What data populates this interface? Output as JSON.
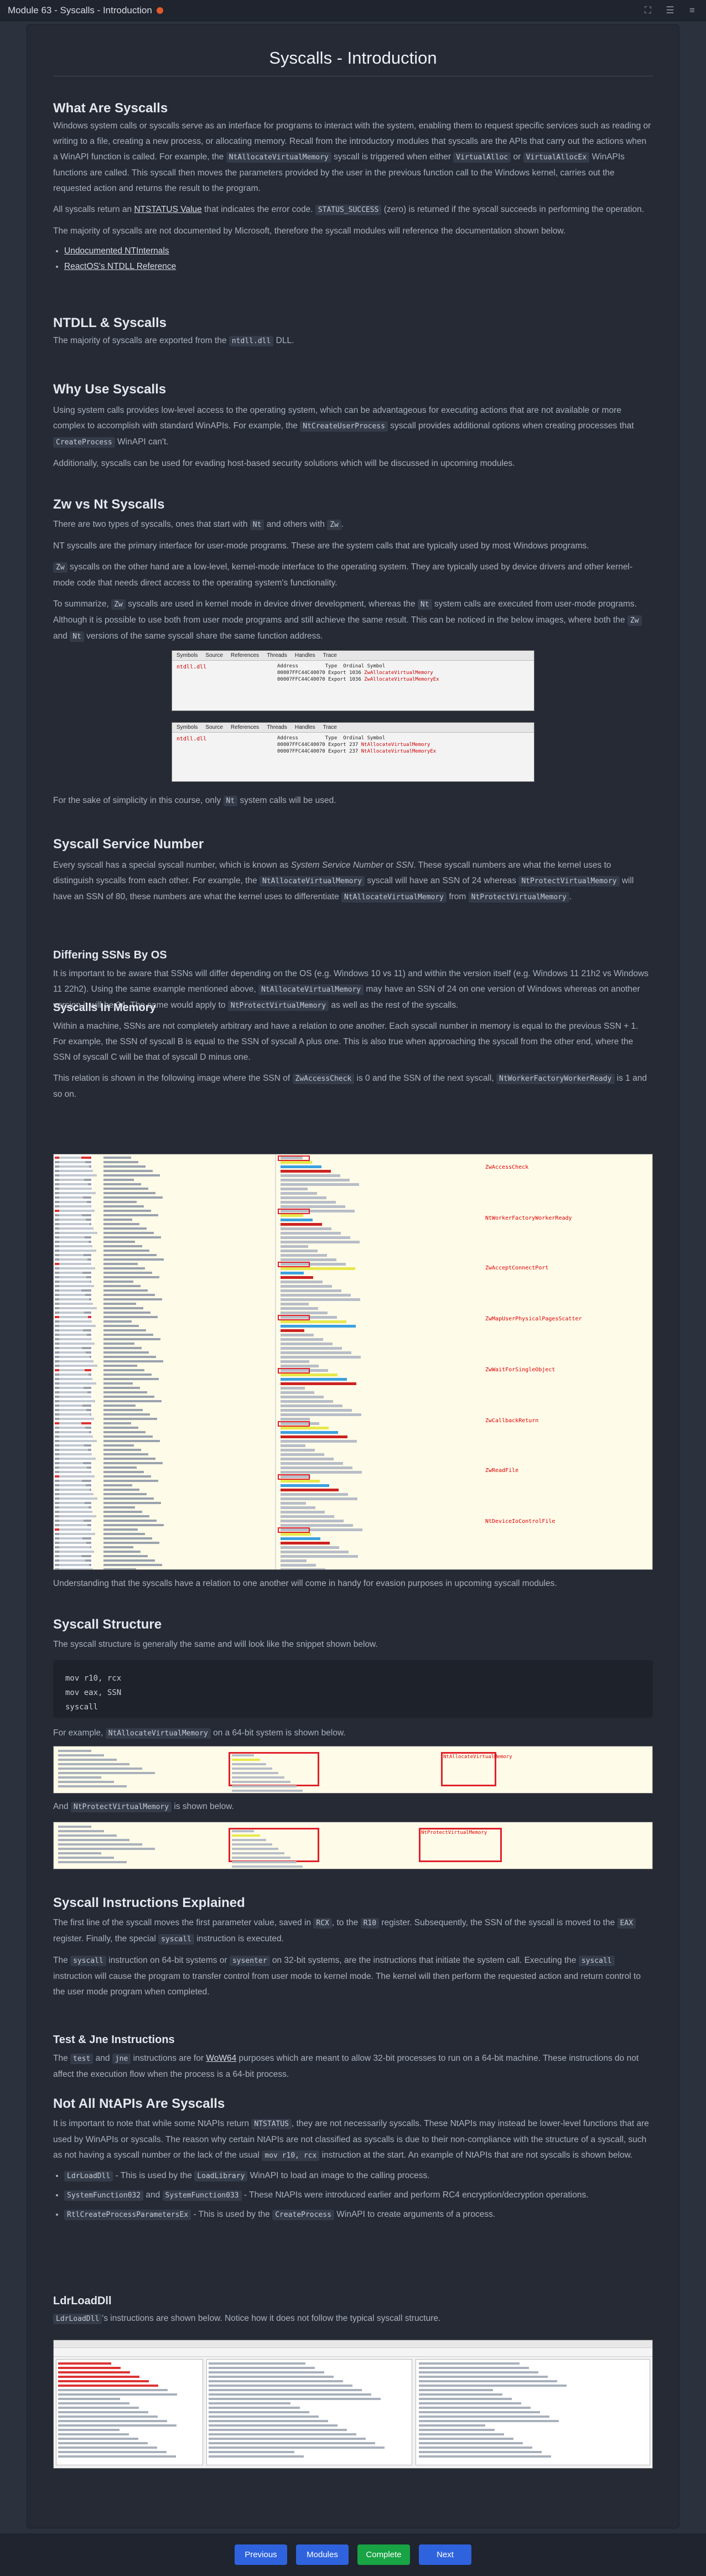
{
  "window": {
    "title": "Module 63 - Syscalls - Introduction"
  },
  "page_title": "Syscalls - Introduction",
  "sections": {
    "what": {
      "heading": "What Are Syscalls",
      "p1a": "Windows system calls or syscalls serve as an interface for programs to interact with the system, enabling them to request specific services such as reading or writing to a file, creating a new process, or allocating memory. Recall from the introductory modules that syscalls are the APIs that carry out the actions when a WinAPI function is called. For example, the ",
      "p1code1": "NtAllocateVirtualMemory",
      "p1b": " syscall is triggered when either ",
      "p1code2": "VirtualAlloc",
      "p1c": " or ",
      "p1code3": "VirtualAllocEx",
      "p1d": " WinAPIs functions are called. This syscall then moves the parameters provided by the user in the previous function call to the Windows kernel, carries out the requested action and returns the result to the program.",
      "p2a": "All syscalls return an ",
      "p2link": "NTSTATUS Value",
      "p2b": " that indicates the error code. ",
      "p2code": "STATUS_SUCCESS",
      "p2c": " (zero) is returned if the syscall succeeds in performing the operation.",
      "p3": "The majority of syscalls are not documented by Microsoft, therefore the syscall modules will reference the documentation shown below.",
      "links": [
        "Undocumented NTInternals",
        "ReactOS's NTDLL Reference"
      ]
    },
    "ntdll": {
      "heading": "NTDLL & Syscalls",
      "p1a": "The majority of syscalls are exported from the ",
      "p1code": "ntdll.dll",
      "p1b": " DLL."
    },
    "why": {
      "heading": "Why Use Syscalls",
      "p1a": "Using system calls provides low-level access to the operating system, which can be advantageous for executing actions that are not available or more complex to accomplish with standard WinAPIs. For example, the ",
      "p1code1": "NtCreateUserProcess",
      "p1b": " syscall provides additional options when creating processes that ",
      "p1code2": "CreateProcess",
      "p1c": " WinAPI can't.",
      "p2": "Additionally, syscalls can be used for evading host-based security solutions which will be discussed in upcoming modules."
    },
    "zw": {
      "heading": "Zw vs Nt Syscalls",
      "p1a": "There are two types of syscalls, ones that start with ",
      "p1code1": "Nt",
      "p1b": " and others with ",
      "p1code2": "Zw",
      "p1c": ".",
      "p2": "NT syscalls are the primary interface for user-mode programs. These are the system calls that are typically used by most Windows programs.",
      "p3code": "Zw",
      "p3": " syscalls on the other hand are a low-level, kernel-mode interface to the operating system. They are typically used by device drivers and other kernel-mode code that needs direct access to the operating system's functionality.",
      "p4a": "To summarize, ",
      "p4code1": "Zw",
      "p4b": " syscalls are used in kernel mode in device driver development, whereas the ",
      "p4code2": "Nt",
      "p4c": " system calls are executed from user-mode programs. Although it is possible to use both from user mode programs and still achieve the same result. This can be noticed in the below images, where both the ",
      "p4code3": "Zw",
      "p4d": " and ",
      "p4code4": "Nt",
      "p4e": " versions of the same syscall share the same function address.",
      "img1": {
        "tabs": [
          "Symbols",
          "Source",
          "References",
          "Threads",
          "Handles",
          "Trace"
        ],
        "left": "ntdll.dll",
        "cols": [
          "Address",
          "Type",
          "Ordinal",
          "Symbol"
        ],
        "rows": [
          [
            "00007FFC44C40070",
            "Export",
            "1036",
            "ZwAllocateVirtualMemory"
          ],
          [
            "00007FFC44C40070",
            "Export",
            "1036",
            "ZwAllocateVirtualMemoryEx"
          ]
        ]
      },
      "img2": {
        "tabs": [
          "Symbols",
          "Source",
          "References",
          "Threads",
          "Handles",
          "Trace"
        ],
        "left": "ntdll.dll",
        "cols": [
          "Address",
          "Type",
          "Ordinal",
          "Symbol"
        ],
        "rows": [
          [
            "00007FFC44C40070",
            "Export",
            "237",
            "NtAllocateVirtualMemory"
          ],
          [
            "00007FFC44C40070",
            "Export",
            "237",
            "NtAllocateVirtualMemoryEx"
          ]
        ]
      },
      "p5a": "For the sake of simplicity in this course, only ",
      "p5code": "Nt",
      "p5b": " system calls will be used."
    },
    "ssn": {
      "heading": "Syscall Service Number",
      "p1a": "Every syscall has a special syscall number, which is known as ",
      "p1em": "System Service Number",
      "p1b": " or ",
      "p1em2": "SSN",
      "p1c": ". These syscall numbers are what the kernel uses to distinguish syscalls from each other. For example, the ",
      "p1code1": "NtAllocateVirtualMemory",
      "p1d": " syscall will have an SSN of 24 whereas ",
      "p1code2": "NtProtectVirtualMemory",
      "p1e": " will have an SSN of 80, these numbers are what the kernel uses to differentiate ",
      "p1code3": "NtAllocateVirtualMemory",
      "p1f": " from ",
      "p1code4": "NtProtectVirtualMemory",
      "p1g": "."
    },
    "diff": {
      "heading": "Differing SSNs By OS",
      "p1a": "It is important to be aware that SSNs will differ depending on the OS (e.g. Windows 10 vs 11) and within the version itself (e.g. Windows 11 21h2 vs Windows 11 22h2). Using the same example mentioned above, ",
      "p1code1": "NtAllocateVirtualMemory",
      "p1b": " may have an SSN of 24 on one version of Windows whereas on another version it will be 34. The same would apply to ",
      "p1code2": "NtProtectVirtualMemory",
      "p1c": " as well as the rest of the syscalls."
    },
    "mem": {
      "heading": "Syscalls In Memory",
      "p1": "Within a machine, SSNs are not completely arbitrary and have a relation to one another. Each syscall number in memory is equal to the previous SSN + 1. For example, the SSN of syscall B is equal to the SSN of syscall A plus one. This is also true when approaching the syscall from the other end, where the SSN of syscall C will be that of syscall D minus one.",
      "p2a": "This relation is shown in the following image where the SSN of ",
      "p2code1": "ZwAccessCheck",
      "p2b": " is 0 and the SSN of the next syscall, ",
      "p2code2": "NtWorkerFactoryWorkerReady",
      "p2c": " is 1 and so on.",
      "names": [
        "ZwAccessCheck",
        "NtWorkerFactoryWorkerReady",
        "ZwAcceptConnectPort",
        "ZwMapUserPhysicalPagesScatter",
        "ZwWaitForSingleObject",
        "ZwCallbackReturn",
        "ZwReadFile",
        "NtDeviceIoControlFile"
      ],
      "p3": "Understanding that the syscalls have a relation to one another will come in handy for evasion purposes in upcoming syscall modules."
    },
    "struct": {
      "heading": "Syscall Structure",
      "p1": "The syscall structure is generally the same and will look like the snippet shown below.",
      "code": [
        "mov r10, rcx",
        "mov eax, SSN",
        "syscall"
      ],
      "p2a": "For example, ",
      "p2code": "NtAllocateVirtualMemory",
      "p2b": " on a 64-bit system is shown below.",
      "img1_label": "NtAllocateVirtualMemory",
      "p3a": "And ",
      "p3code": "NtProtectVirtualMemory",
      "p3b": " is shown below.",
      "img2_label": "NtProtectVirtualMemory"
    },
    "explained": {
      "heading": "Syscall Instructions Explained",
      "p1a": "The first line of the syscall moves the first parameter value, saved in ",
      "p1code1": "RCX",
      "p1b": ", to the ",
      "p1code2": "R10",
      "p1c": " register. Subsequently, the SSN of the syscall is moved to the ",
      "p1code3": "EAX",
      "p1d": " register. Finally, the special ",
      "p1code4": "syscall",
      "p1e": " instruction is executed.",
      "p2a": "The ",
      "p2code1": "syscall",
      "p2b": " instruction on 64-bit systems or ",
      "p2code2": "sysenter",
      "p2c": " on 32-bit systems, are the instructions that initiate the system call. Executing the ",
      "p2code3": "syscall",
      "p2d": " instruction will cause the program to transfer control from user mode to kernel mode. The kernel will then perform the requested action and return control to the user mode program when completed."
    },
    "test": {
      "heading": "Test & Jne Instructions",
      "p1a": "The ",
      "p1code1": "test",
      "p1b": " and ",
      "p1code2": "jne",
      "p1c": " instructions are for ",
      "p1link": "WoW64",
      "p1d": " purposes which are meant to allow 32-bit processes to run on a 64-bit machine. These instructions do not affect the execution flow when the process is a 64-bit process."
    },
    "notall": {
      "heading": "Not All NtAPIs Are Syscalls",
      "p1a": "It is important to note that while some NtAPIs return ",
      "p1code1": "NTSTATUS",
      "p1b": ", they are not necessarily syscalls. These NtAPIs may instead be lower-level functions that are used by WinAPIs or syscalls. The reason why certain NtAPIs are not classified as syscalls is due to their non-compliance with the structure of a syscall, such as not having a syscall number or the lack of the usual ",
      "p1code2": "mov r10, rcx",
      "p1c": " instruction at the start. An example of NtAPIs that are not syscalls is shown below.",
      "items": [
        {
          "c1": "LdrLoadDll",
          "t1": " - This is used by the ",
          "c2": "LoadLibrary",
          "t2": " WinAPI to load an image to the calling process."
        },
        {
          "c1": "SystemFunction032",
          "t1": " and ",
          "c2": "SystemFunction033",
          "t2": " - These NtAPIs were introduced earlier and perform RC4 encryption/decryption operations."
        },
        {
          "c1": "RtlCreateProcessParametersEx",
          "t1": " - This is used by the ",
          "c2": "CreateProcess",
          "t2": " WinAPI to create arguments of a process."
        }
      ]
    },
    "ldr": {
      "heading": "LdrLoadDll",
      "p1code": "LdrLoadDll",
      "p1": "'s instructions are shown below. Notice how it does not follow the typical syscall structure."
    }
  },
  "nav": {
    "previous": "Previous",
    "modules": "Modules",
    "complete": "Complete",
    "next": "Next"
  },
  "colors": {
    "accent": "#2f63dd",
    "complete": "#18a344",
    "status_dot": "#e4582b"
  }
}
